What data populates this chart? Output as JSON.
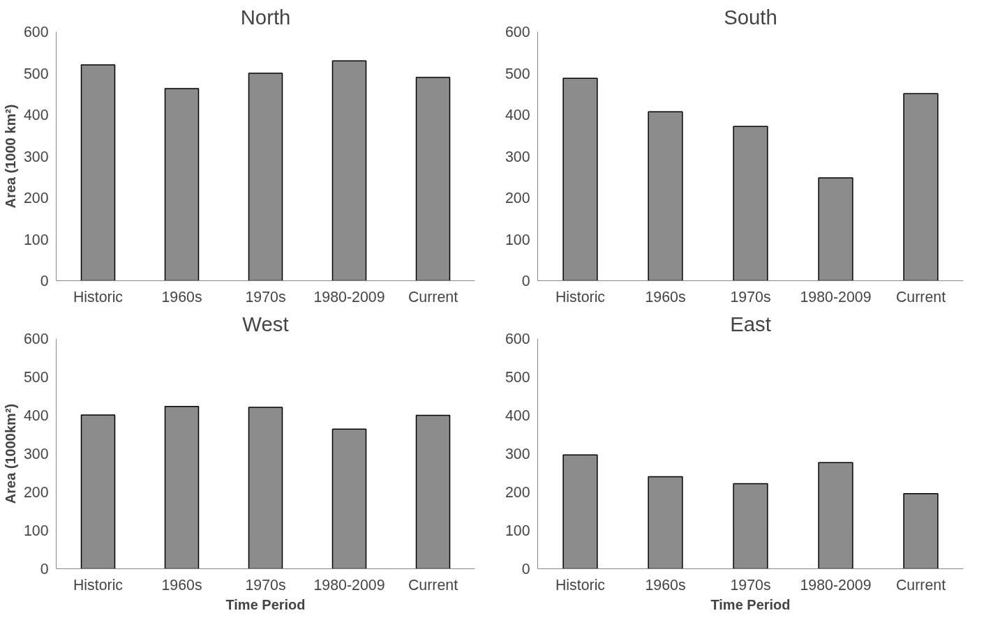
{
  "chart_data": [
    {
      "type": "bar",
      "title": "North",
      "ylabel": "Area (1000 km²)",
      "categories": [
        "Historic",
        "1960s",
        "1970s",
        "1980-2009",
        "Current"
      ],
      "values": [
        520,
        463,
        500,
        530,
        490
      ],
      "color": "#8c8c8c",
      "ylim": [
        0,
        600
      ],
      "yticks": [
        0,
        100,
        200,
        300,
        400,
        500,
        600
      ],
      "grid": false
    },
    {
      "type": "bar",
      "title": "South",
      "categories": [
        "Historic",
        "1960s",
        "1970s",
        "1980-2009",
        "Current"
      ],
      "values": [
        488,
        407,
        372,
        248,
        451
      ],
      "color": "#8c8c8c",
      "ylim": [
        0,
        600
      ],
      "yticks": [
        0,
        100,
        200,
        300,
        400,
        500,
        600
      ],
      "grid": false
    },
    {
      "type": "bar",
      "title": "West",
      "ylabel": "Area (1000km²)",
      "xlabel": "Time Period",
      "categories": [
        "Historic",
        "1960s",
        "1970s",
        "1980-2009",
        "Current"
      ],
      "values": [
        401,
        423,
        421,
        364,
        400
      ],
      "color": "#8c8c8c",
      "ylim": [
        0,
        600
      ],
      "yticks": [
        0,
        100,
        200,
        300,
        400,
        500,
        600
      ],
      "grid": false
    },
    {
      "type": "bar",
      "title": "East",
      "xlabel": "Time Period",
      "categories": [
        "Historic",
        "1960s",
        "1970s",
        "1980-2009",
        "Current"
      ],
      "values": [
        297,
        240,
        222,
        277,
        196
      ],
      "color": "#8c8c8c",
      "ylim": [
        0,
        600
      ],
      "yticks": [
        0,
        100,
        200,
        300,
        400,
        500,
        600
      ],
      "grid": false
    }
  ]
}
